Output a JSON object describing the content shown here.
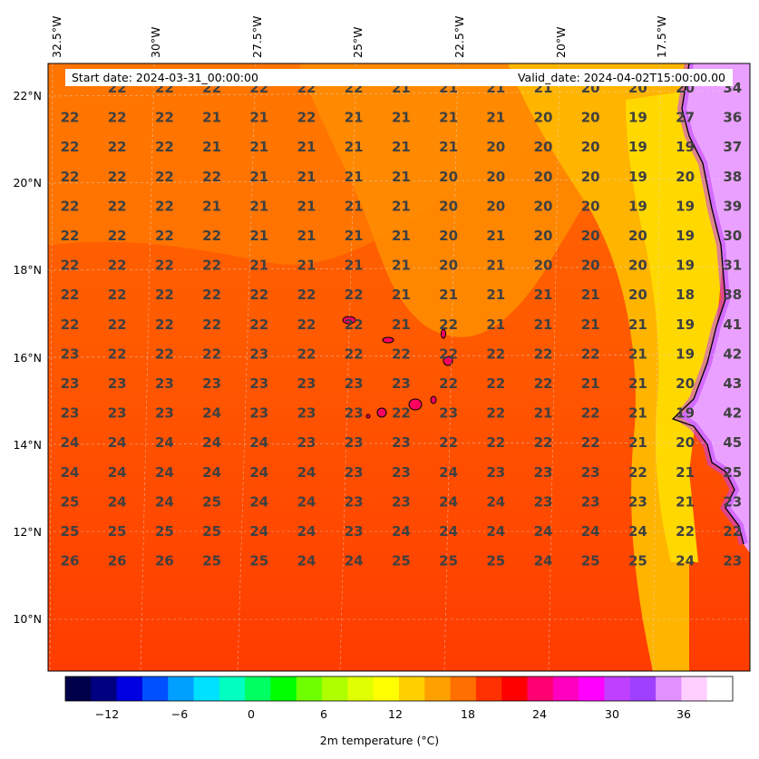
{
  "map": {
    "start_date": "Start date: 2024-03-31_00:00:00",
    "valid_date": "Valid_date: 2024-04-02T15:00:00.00",
    "lon_labels": [
      "32.5°W",
      "30°W",
      "27.5°W",
      "25°W",
      "22.5°W",
      "20°W",
      "17.5°W"
    ],
    "lat_labels": [
      "22°N",
      "20°N",
      "18°N",
      "16°N",
      "14°N",
      "12°N",
      "10°N"
    ],
    "grid": [
      [
        "22",
        "22",
        "22",
        "22",
        "22",
        "22",
        "21",
        "21",
        "21",
        "21",
        "20",
        "20",
        "20",
        "34"
      ],
      [
        "22",
        "22",
        "22",
        "21",
        "21",
        "22",
        "21",
        "21",
        "21",
        "21",
        "20",
        "20",
        "19",
        "27",
        "36"
      ],
      [
        "22",
        "22",
        "22",
        "21",
        "21",
        "21",
        "21",
        "21",
        "21",
        "20",
        "20",
        "20",
        "19",
        "19",
        "37"
      ],
      [
        "22",
        "22",
        "22",
        "22",
        "21",
        "21",
        "21",
        "21",
        "20",
        "20",
        "20",
        "20",
        "19",
        "20",
        "38"
      ],
      [
        "22",
        "22",
        "22",
        "21",
        "21",
        "21",
        "21",
        "21",
        "20",
        "20",
        "20",
        "20",
        "19",
        "19",
        "39"
      ],
      [
        "22",
        "22",
        "22",
        "22",
        "21",
        "21",
        "21",
        "21",
        "20",
        "21",
        "20",
        "20",
        "20",
        "19",
        "30"
      ],
      [
        "22",
        "22",
        "22",
        "22",
        "21",
        "21",
        "21",
        "21",
        "20",
        "21",
        "20",
        "20",
        "20",
        "19",
        "31"
      ],
      [
        "22",
        "22",
        "22",
        "22",
        "22",
        "22",
        "22",
        "21",
        "21",
        "21",
        "21",
        "21",
        "20",
        "18",
        "38"
      ],
      [
        "22",
        "22",
        "22",
        "22",
        "22",
        "22",
        "22",
        "21",
        "22",
        "21",
        "21",
        "21",
        "21",
        "19",
        "41"
      ],
      [
        "23",
        "22",
        "22",
        "22",
        "23",
        "22",
        "22",
        "22",
        "22",
        "22",
        "22",
        "22",
        "21",
        "19",
        "42"
      ],
      [
        "23",
        "23",
        "23",
        "23",
        "23",
        "23",
        "23",
        "23",
        "22",
        "22",
        "22",
        "21",
        "21",
        "20",
        "43"
      ],
      [
        "23",
        "23",
        "23",
        "24",
        "23",
        "23",
        "23",
        "22",
        "23",
        "22",
        "21",
        "22",
        "21",
        "19",
        "42"
      ],
      [
        "24",
        "24",
        "24",
        "24",
        "24",
        "23",
        "23",
        "23",
        "22",
        "22",
        "22",
        "22",
        "21",
        "20",
        "45"
      ],
      [
        "24",
        "24",
        "24",
        "24",
        "24",
        "24",
        "23",
        "23",
        "24",
        "23",
        "23",
        "23",
        "22",
        "21",
        "25"
      ],
      [
        "25",
        "24",
        "24",
        "25",
        "24",
        "24",
        "23",
        "23",
        "24",
        "24",
        "23",
        "23",
        "23",
        "21",
        "23"
      ],
      [
        "25",
        "25",
        "25",
        "25",
        "24",
        "24",
        "23",
        "24",
        "24",
        "24",
        "24",
        "24",
        "24",
        "22",
        "22"
      ],
      [
        "26",
        "26",
        "26",
        "25",
        "25",
        "24",
        "24",
        "25",
        "25",
        "25",
        "24",
        "25",
        "25",
        "24",
        "23"
      ]
    ],
    "colors": {
      "ocean_main": "#ff5a00",
      "ocean_south": "#ff4000",
      "cool_band": "#ff8c00",
      "coast_cool": "#ffc300",
      "coast_yellow": "#ffe000",
      "land_hot": "#f0a0ff",
      "land_edge": "#cc33ff",
      "label_color": "#404040"
    }
  },
  "colorbar": {
    "ticks": [
      "−12",
      "−6",
      "0",
      "6",
      "12",
      "18",
      "24",
      "30",
      "36"
    ],
    "label": "2m temperature (°C)",
    "range": [
      -15,
      39
    ],
    "colors": [
      "#00004a",
      "#000080",
      "#0000e0",
      "#0050ff",
      "#00a0ff",
      "#00e0ff",
      "#00ffc0",
      "#00ff60",
      "#00ff00",
      "#70ff00",
      "#b0ff00",
      "#e0ff00",
      "#ffff00",
      "#ffd000",
      "#ffa000",
      "#ff7000",
      "#ff3000",
      "#ff0000",
      "#ff0070",
      "#ff00c0",
      "#ff00ff",
      "#c040ff",
      "#a040ff",
      "#e090ff",
      "#ffd0ff",
      "#ffffff"
    ]
  }
}
